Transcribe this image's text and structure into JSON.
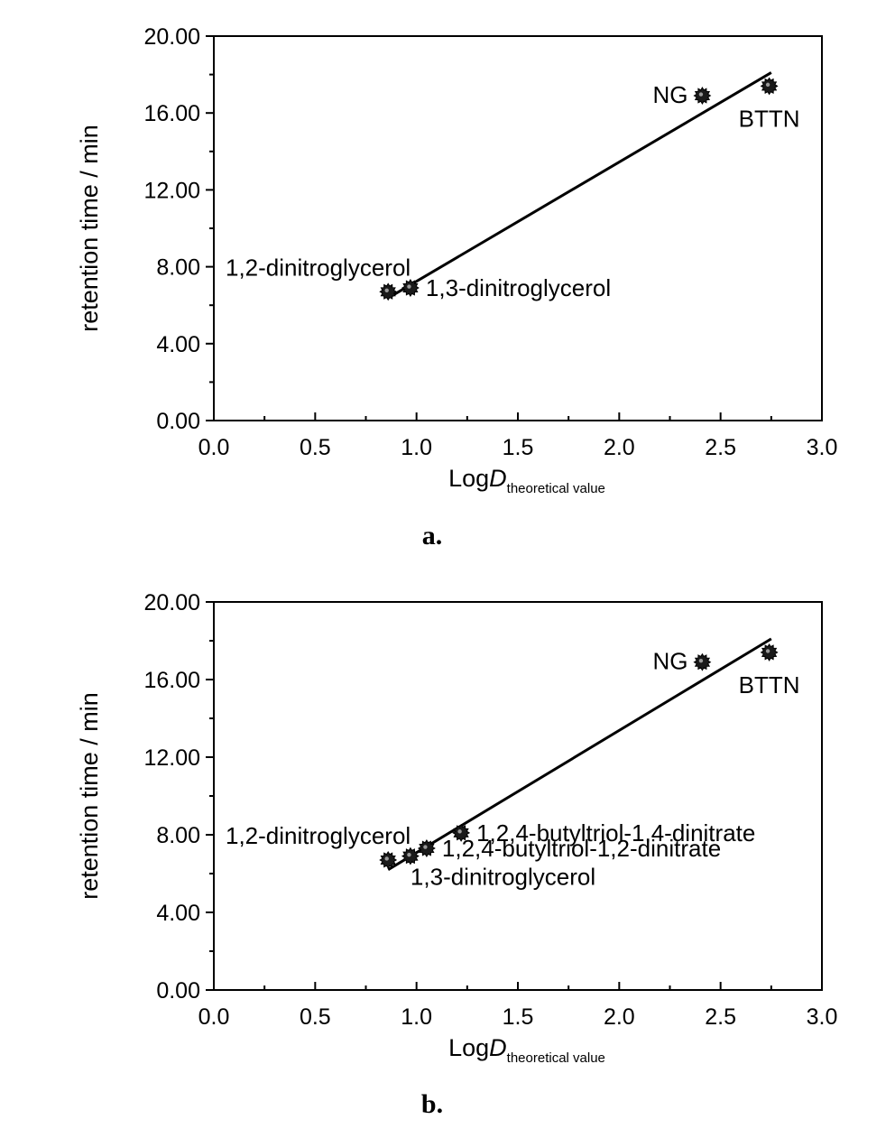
{
  "chart_data": [
    {
      "type": "scatter",
      "caption": "a.",
      "xlabel_main": "Log",
      "xlabel_italic": "D",
      "xlabel_sub": "theoretical value",
      "ylabel": "retention time / min",
      "xlim": [
        0,
        3
      ],
      "ylim": [
        0,
        20
      ],
      "xticks": [
        "0.0",
        "0.5",
        "1.0",
        "1.5",
        "2.0",
        "2.5",
        "3.0"
      ],
      "yticks": [
        "0.00",
        "4.00",
        "8.00",
        "12.00",
        "16.00",
        "20.00"
      ],
      "points": [
        {
          "x": 0.86,
          "y": 6.7,
          "label": "1,2-dinitroglycerol",
          "anchor": "above-left"
        },
        {
          "x": 0.97,
          "y": 6.9,
          "label": "1,3-dinitroglycerol",
          "anchor": "right"
        },
        {
          "x": 2.41,
          "y": 16.9,
          "label": "NG",
          "anchor": "left"
        },
        {
          "x": 2.74,
          "y": 17.4,
          "label": "BTTN",
          "anchor": "below"
        }
      ],
      "fit_line": {
        "x": [
          0.88,
          2.75
        ],
        "y": [
          6.5,
          18.1
        ]
      }
    },
    {
      "type": "scatter",
      "caption": "b.",
      "xlabel_main": "Log",
      "xlabel_italic": "D",
      "xlabel_sub": "theoretical value",
      "ylabel": "retention time / min",
      "xlim": [
        0,
        3
      ],
      "ylim": [
        0,
        20
      ],
      "xticks": [
        "0.0",
        "0.5",
        "1.0",
        "1.5",
        "2.0",
        "2.5",
        "3.0"
      ],
      "yticks": [
        "0.00",
        "4.00",
        "8.00",
        "12.00",
        "16.00",
        "20.00"
      ],
      "points": [
        {
          "x": 0.86,
          "y": 6.7,
          "label": "1,2-dinitroglycerol",
          "anchor": "above-left"
        },
        {
          "x": 0.97,
          "y": 6.9,
          "label": "1,3-dinitroglycerol",
          "anchor": "below"
        },
        {
          "x": 1.05,
          "y": 7.3,
          "label": "1,2,4-butyltriol-1,2-dinitrate",
          "anchor": "right"
        },
        {
          "x": 1.22,
          "y": 8.1,
          "label": "1,2,4-butyltriol-1,4-dinitrate",
          "anchor": "right"
        },
        {
          "x": 2.41,
          "y": 16.9,
          "label": "NG",
          "anchor": "left"
        },
        {
          "x": 2.74,
          "y": 17.4,
          "label": "BTTN",
          "anchor": "below"
        }
      ],
      "fit_line": {
        "x": [
          0.86,
          2.75
        ],
        "y": [
          6.2,
          18.1
        ]
      }
    }
  ]
}
